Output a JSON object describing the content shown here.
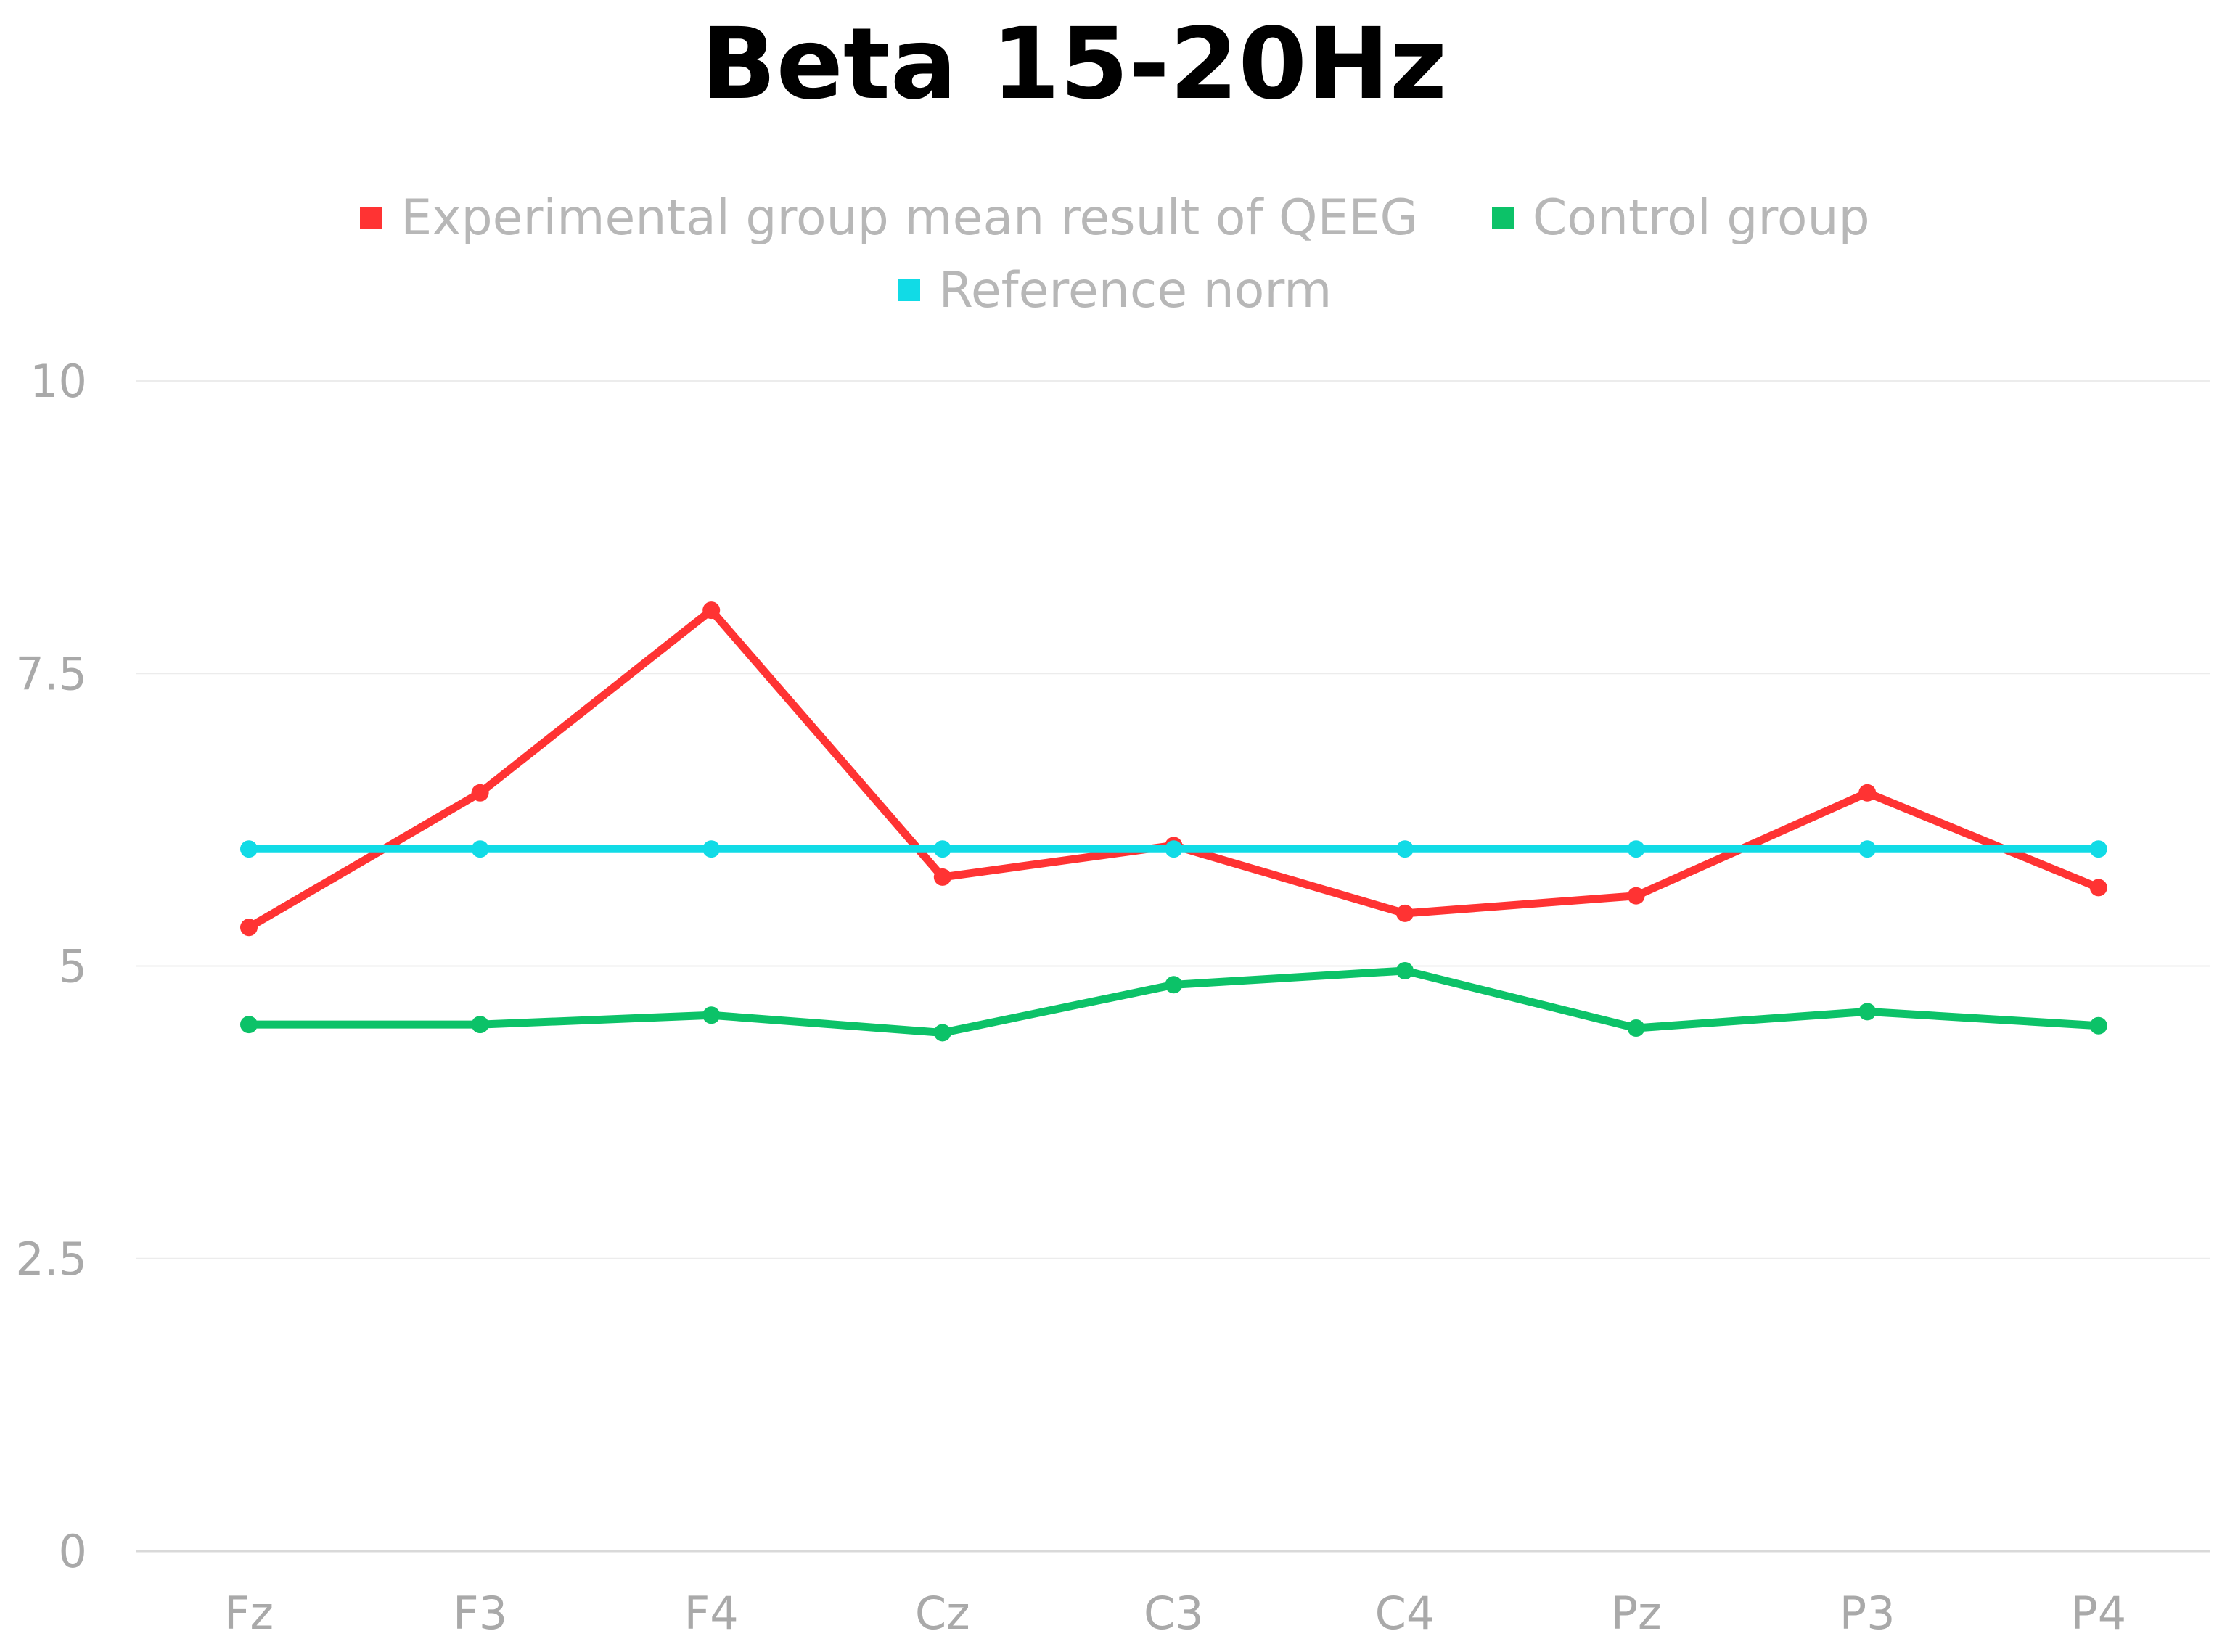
{
  "chart_data": {
    "type": "line",
    "title": "Beta 15-20Hz",
    "categories": [
      "Fz",
      "F3",
      "F4",
      "Cz",
      "C3",
      "C4",
      "Pz",
      "P3",
      "P4"
    ],
    "series": [
      {
        "name": "Experimental group mean result of QEEG",
        "color": "#ff3333",
        "values": [
          5.33,
          6.48,
          8.04,
          5.76,
          6.03,
          5.45,
          5.6,
          6.48,
          5.67
        ]
      },
      {
        "name": "Control group",
        "color": "#0cc268",
        "values": [
          4.5,
          4.5,
          4.58,
          4.43,
          4.84,
          4.96,
          4.47,
          4.61,
          4.49
        ]
      },
      {
        "name": "Reference norm",
        "color": "#11dbe6",
        "values": [
          6,
          6,
          6,
          6,
          6,
          6,
          6,
          6,
          6
        ]
      }
    ],
    "yticks": [
      0,
      2.5,
      5,
      7.5,
      10
    ],
    "ytick_labels": [
      "0",
      "2.5",
      "5",
      "7.5",
      "10"
    ],
    "ylim": [
      0,
      10
    ],
    "xlabel": "",
    "ylabel": "",
    "grid": true,
    "legend_position": "top"
  }
}
